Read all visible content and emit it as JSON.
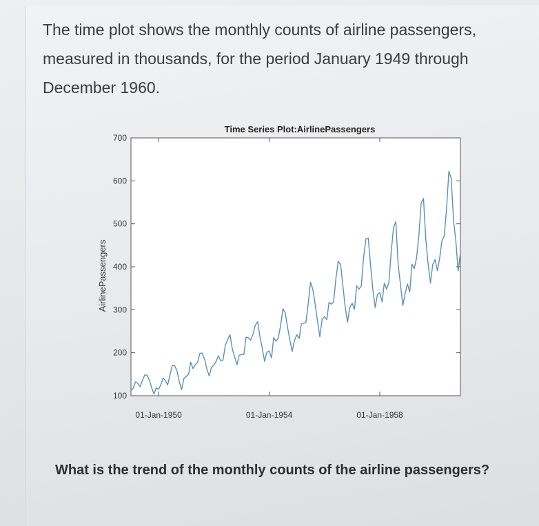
{
  "intro_text": "The time plot shows the monthly counts of airline passengers, measured in thousands, for the period January 1949 through December 1960.",
  "question_text": "What is the trend of the monthly counts of the airline passengers?",
  "colors": {
    "line": "#5b8fb9",
    "axis": "#444444",
    "text": "#333333"
  },
  "chart_data": {
    "type": "line",
    "title": "Time Series Plot:AirlinePassengers",
    "xlabel": "",
    "ylabel": "AirlinePassengers",
    "ylim": [
      100,
      700
    ],
    "y_ticks": [
      100,
      200,
      300,
      400,
      500,
      600,
      700
    ],
    "x_tick_labels": [
      "01-Jan-1950",
      "01-Jan-1954",
      "01-Jan-1958"
    ],
    "x_tick_dates": [
      "1950-01-01",
      "1954-01-01",
      "1958-01-01"
    ],
    "x_start": "1949-01",
    "x_end": "1960-12",
    "grid": false,
    "series": [
      {
        "values": [
          112,
          118,
          132,
          129,
          121,
          135,
          148,
          148,
          136,
          119,
          104,
          118,
          115,
          126,
          141,
          135,
          125,
          149,
          170,
          170,
          158,
          133,
          114,
          140,
          145,
          150,
          178,
          163,
          172,
          178,
          199,
          199,
          184,
          162,
          146,
          166,
          171,
          180,
          193,
          181,
          183,
          218,
          230,
          242,
          209,
          191,
          172,
          194,
          196,
          196,
          236,
          235,
          229,
          243,
          264,
          272,
          237,
          211,
          180,
          201,
          204,
          188,
          235,
          227,
          234,
          264,
          302,
          293,
          259,
          229,
          203,
          229,
          242,
          233,
          267,
          269,
          270,
          315,
          364,
          347,
          312,
          274,
          237,
          278,
          284,
          277,
          317,
          313,
          318,
          374,
          413,
          405,
          355,
          306,
          271,
          306,
          315,
          301,
          356,
          348,
          355,
          422,
          465,
          467,
          404,
          347,
          305,
          336,
          340,
          318,
          362,
          348,
          363,
          435,
          491,
          505,
          404,
          359,
          310,
          337,
          360,
          342,
          406,
          396,
          420,
          472,
          548,
          559,
          463,
          407,
          362,
          405,
          417,
          391,
          419,
          461,
          472,
          535,
          622,
          606,
          508,
          461,
          390,
          432
        ]
      }
    ]
  }
}
